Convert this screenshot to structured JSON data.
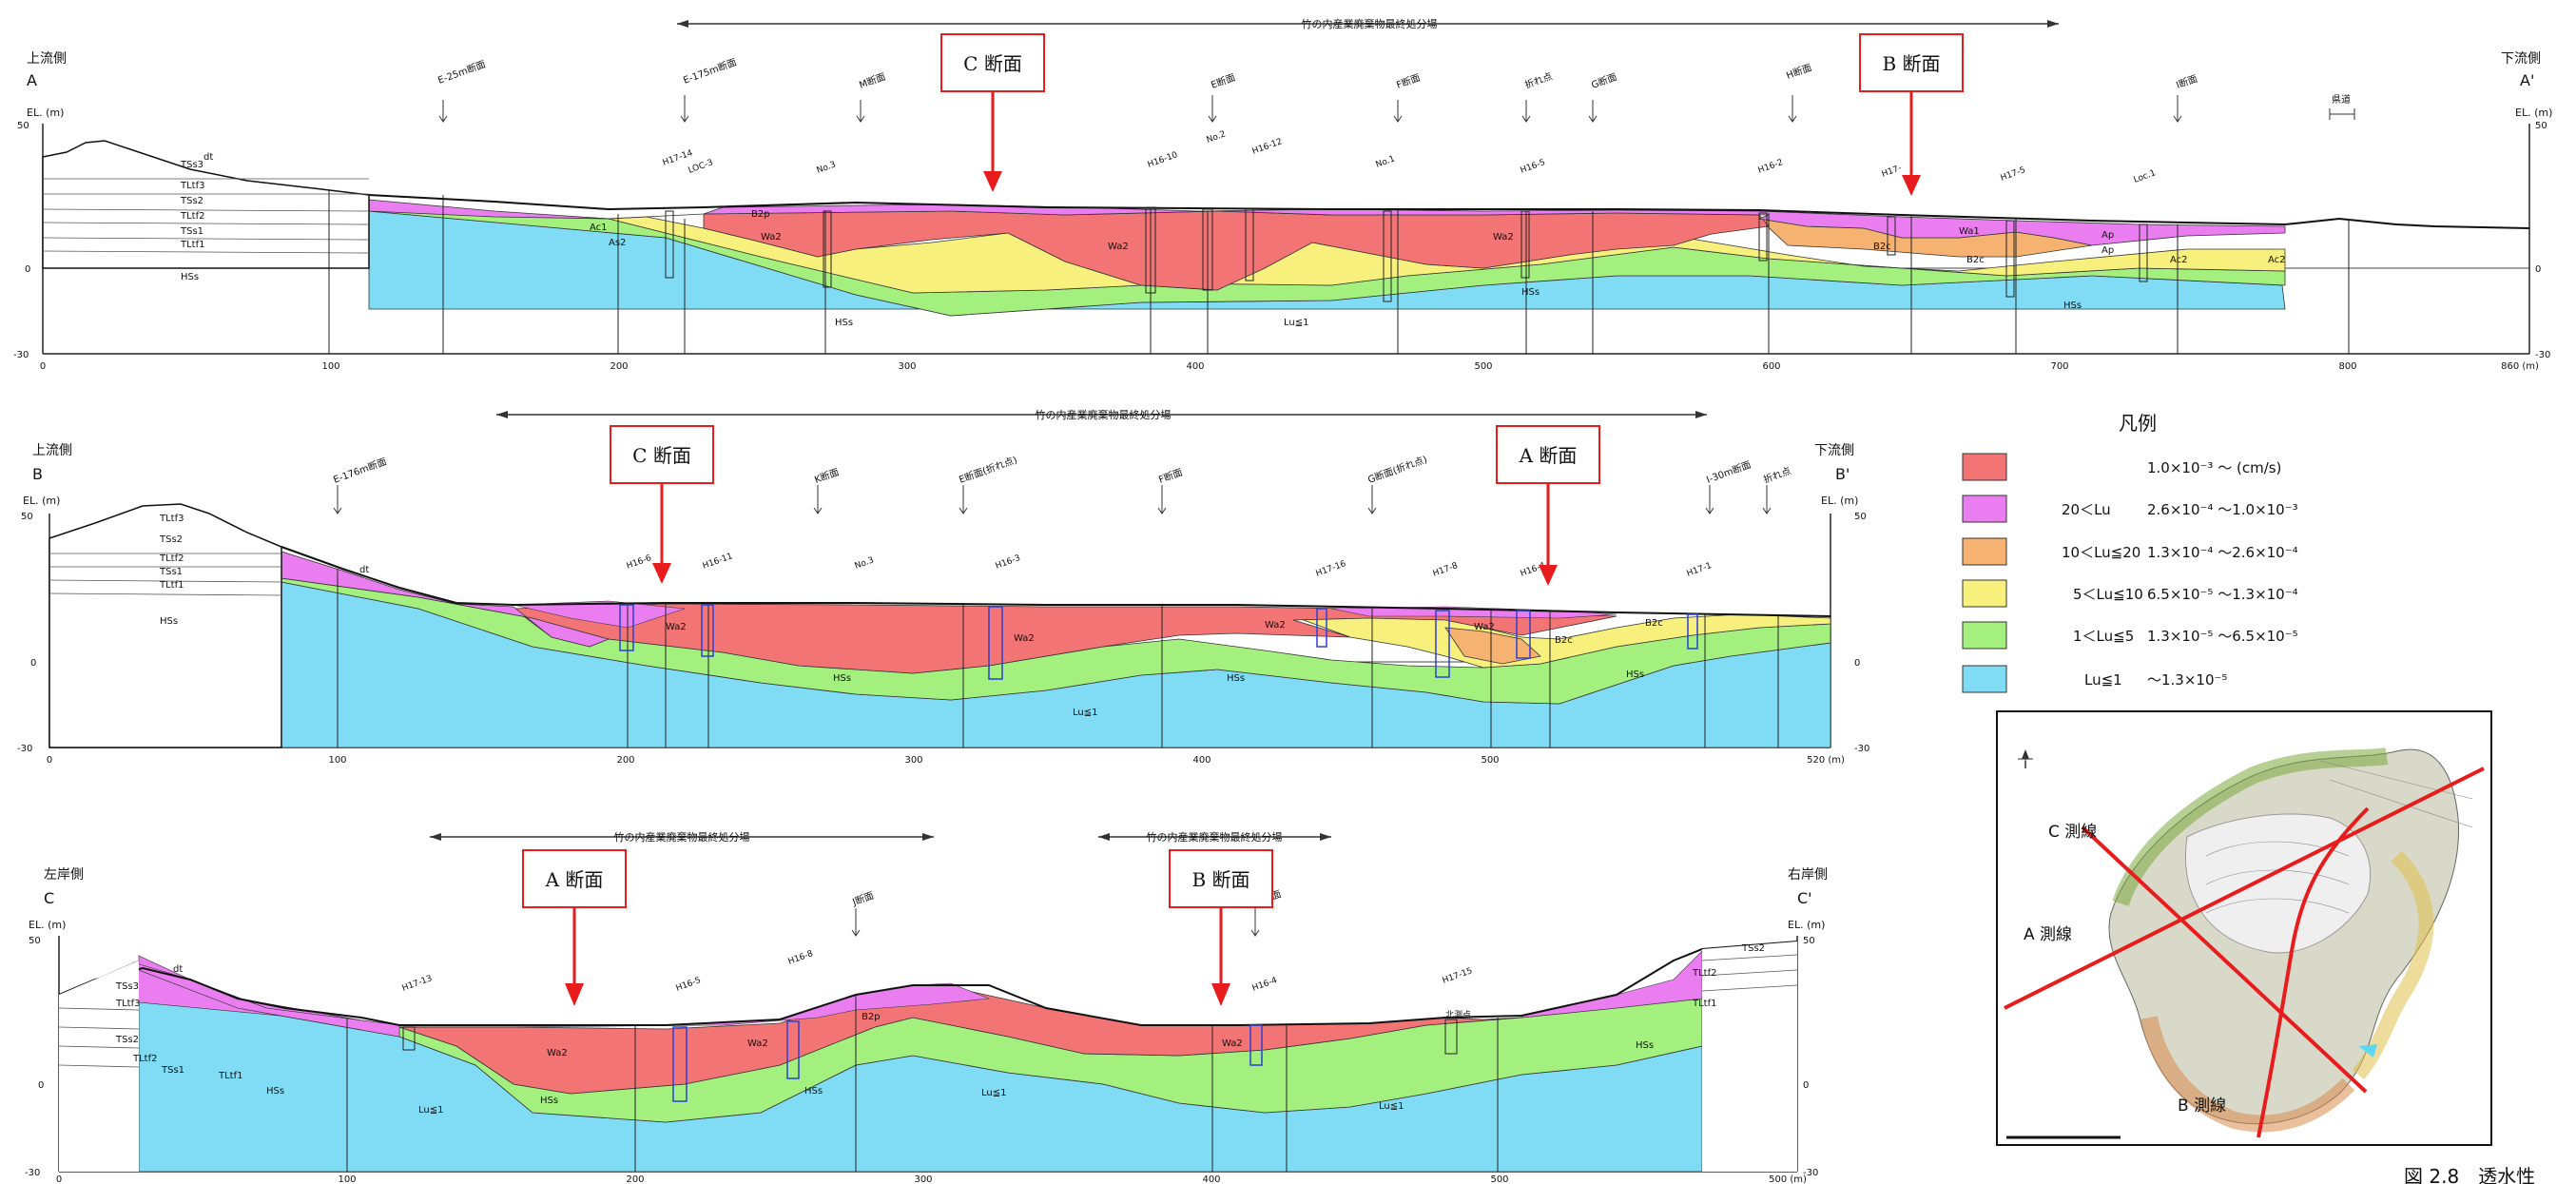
{
  "colors": {
    "red": "#f27474",
    "magenta": "#ea7ef0",
    "orange": "#f6b270",
    "yellow": "#f8f07c",
    "green": "#a4f07e",
    "cyan": "#80dcf4",
    "marker_red": "#e81c1c",
    "borehole_blue": "#2b3fd6"
  },
  "sections": [
    {
      "id": "A",
      "upstream_label": "上流側",
      "downstream_label": "下流側",
      "start_label": "A",
      "end_label": "A'",
      "el_label": "EL. (m)",
      "ticks_x": [
        "0",
        "100",
        "200",
        "300",
        "400",
        "500",
        "600",
        "700",
        "800",
        "860 (m)"
      ],
      "ticks_y": [
        "50",
        "0",
        "-30"
      ],
      "disposal_label": "竹の内産業廃棄物最終処分場",
      "callouts": [
        "C 断面",
        "B 断面"
      ],
      "crossings": [
        "E-25m断面",
        "E-175m断面",
        "M断面",
        "E断面",
        "F断面",
        "折れ点",
        "G断面",
        "H断面",
        "I断面",
        "県道"
      ],
      "boreholes": [
        "H17-14",
        "LOC-3",
        "No.3",
        "H16-10",
        "No.2",
        "H16-12",
        "No.1",
        "H16-5",
        "H16-2",
        "H17-",
        "H17-5",
        "Loc.1"
      ],
      "units": [
        "TSs3",
        "dt",
        "TLtf3",
        "TSs2",
        "TLtf2",
        "TSs1",
        "TLtf1",
        "HSs",
        "Ac1",
        "As2",
        "B2p",
        "Wa2",
        "Wa1",
        "B2c",
        "Ap",
        "Ac2",
        "Lu≦1"
      ]
    },
    {
      "id": "B",
      "upstream_label": "上流側",
      "downstream_label": "下流側",
      "start_label": "B",
      "end_label": "B'",
      "el_label": "EL. (m)",
      "ticks_x": [
        "0",
        "100",
        "200",
        "300",
        "400",
        "500",
        "520 (m)"
      ],
      "ticks_y": [
        "50",
        "0",
        "-30"
      ],
      "disposal_label": "竹の内産業廃棄物最終処分場",
      "callouts": [
        "C 断面",
        "A 断面"
      ],
      "crossings": [
        "E-176m断面",
        "K断面",
        "E断面(折れ点)",
        "F断面",
        "G断面(折れ点)",
        "I-30m断面",
        "折れ点"
      ],
      "boreholes": [
        "H16-6",
        "H16-11",
        "No.3",
        "H16-3",
        "H17-16",
        "H17-8",
        "H16-4",
        "H17-1"
      ],
      "units": [
        "TLtf3",
        "TSs2",
        "TLtf2",
        "TSs1",
        "TLtf1",
        "HSs",
        "dt",
        "Wa2",
        "B2c",
        "Lu≦1"
      ]
    },
    {
      "id": "C",
      "upstream_label": "左岸側",
      "downstream_label": "右岸側",
      "start_label": "C",
      "end_label": "C'",
      "el_label": "EL. (m)",
      "ticks_x": [
        "0",
        "100",
        "200",
        "300",
        "400",
        "500",
        "500 (m)"
      ],
      "ticks_y": [
        "50",
        "0",
        "-30"
      ],
      "disposal_label": "竹の内産業廃棄物最終処分場",
      "callouts": [
        "A 断面",
        "B 断面"
      ],
      "crossings": [
        "J断面",
        "D断面"
      ],
      "boreholes": [
        "H17-13",
        "H16-5",
        "H16-8",
        "H16-4",
        "H17-15",
        "北測点"
      ],
      "units": [
        "TSs3",
        "TLtf3",
        "TSs2",
        "TLtf2",
        "TSs1",
        "TLtf1",
        "HSs",
        "dt",
        "Wa2",
        "B2p",
        "Lu≦1",
        "TSs2",
        "TLtf2",
        "TLtf1"
      ]
    }
  ],
  "legend": {
    "title": "凡例",
    "items": [
      {
        "color_key": "red",
        "range": "",
        "value": "1.0×10⁻³ ～ (cm/s)"
      },
      {
        "color_key": "magenta",
        "range": "20＜Lu",
        "value": "2.6×10⁻⁴ ～1.0×10⁻³"
      },
      {
        "color_key": "orange",
        "range": "10＜Lu≦20",
        "value": "1.3×10⁻⁴ ～2.6×10⁻⁴"
      },
      {
        "color_key": "yellow",
        "range": "5＜Lu≦10",
        "value": "6.5×10⁻⁵ ～1.3×10⁻⁴"
      },
      {
        "color_key": "green",
        "range": "1＜Lu≦5",
        "value": "1.3×10⁻⁵ ～6.5×10⁻⁵"
      },
      {
        "color_key": "cyan",
        "range": "Lu≦1",
        "value": "～1.3×10⁻⁵"
      }
    ]
  },
  "map": {
    "labels": [
      "C 測線",
      "A 測線",
      "B 測線"
    ]
  },
  "figure_caption": "図 2.8　透水性"
}
